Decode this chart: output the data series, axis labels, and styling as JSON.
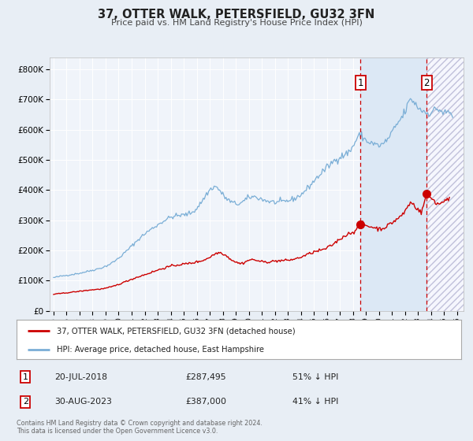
{
  "title": "37, OTTER WALK, PETERSFIELD, GU32 3FN",
  "subtitle": "Price paid vs. HM Land Registry's House Price Index (HPI)",
  "bg_color": "#e8eef5",
  "plot_bg_color": "#f0f4fa",
  "grid_color": "#ffffff",
  "red_line_color": "#cc0000",
  "blue_line_color": "#7aaed6",
  "highlight_color": "#dce8f5",
  "marker1_x": 2018.583,
  "marker1_value": 287495,
  "marker2_x": 2023.667,
  "marker2_value": 387000,
  "marker1_label": "20-JUL-2018",
  "marker1_price": "£287,495",
  "marker1_pct": "51% ↓ HPI",
  "marker2_label": "30-AUG-2023",
  "marker2_price": "£387,000",
  "marker2_pct": "41% ↓ HPI",
  "legend_line1": "37, OTTER WALK, PETERSFIELD, GU32 3FN (detached house)",
  "legend_line2": "HPI: Average price, detached house, East Hampshire",
  "footer1": "Contains HM Land Registry data © Crown copyright and database right 2024.",
  "footer2": "This data is licensed under the Open Government Licence v3.0.",
  "xlim_start": 1994.7,
  "xlim_end": 2026.5,
  "ylim_min": 0,
  "ylim_max": 840000,
  "yticks": [
    0,
    100000,
    200000,
    300000,
    400000,
    500000,
    600000,
    700000,
    800000
  ],
  "ytick_labels": [
    "£0",
    "£100K",
    "£200K",
    "£300K",
    "£400K",
    "£500K",
    "£600K",
    "£700K",
    "£800K"
  ],
  "hpi_anchors_x": [
    1995.0,
    1996.0,
    1997.0,
    1998.0,
    1999.0,
    2000.0,
    2001.0,
    2002.0,
    2003.0,
    2004.0,
    2005.0,
    2006.0,
    2007.0,
    2007.5,
    2008.0,
    2008.5,
    2009.0,
    2009.5,
    2010.0,
    2011.0,
    2012.0,
    2013.0,
    2014.0,
    2015.0,
    2016.0,
    2017.0,
    2018.0,
    2018.5,
    2019.0,
    2019.5,
    2020.0,
    2020.5,
    2021.0,
    2021.5,
    2022.0,
    2022.5,
    2022.8,
    2023.0,
    2023.3,
    2023.5,
    2023.8,
    2024.0,
    2024.3,
    2024.6,
    2025.0,
    2025.3,
    2025.6
  ],
  "hpi_anchors_y": [
    110000,
    118000,
    125000,
    135000,
    148000,
    175000,
    215000,
    255000,
    285000,
    310000,
    318000,
    340000,
    400000,
    410000,
    385000,
    365000,
    355000,
    360000,
    375000,
    370000,
    360000,
    365000,
    385000,
    430000,
    475000,
    510000,
    545000,
    580000,
    565000,
    555000,
    548000,
    560000,
    590000,
    625000,
    660000,
    700000,
    685000,
    675000,
    665000,
    660000,
    655000,
    660000,
    665000,
    668000,
    655000,
    658000,
    648000
  ],
  "red_anchors_x": [
    1995.0,
    1996.0,
    1997.0,
    1998.0,
    1999.0,
    2000.0,
    2001.0,
    2002.0,
    2003.0,
    2004.0,
    2005.0,
    2006.0,
    2007.0,
    2007.8,
    2008.5,
    2009.0,
    2009.5,
    2010.0,
    2011.0,
    2012.0,
    2013.0,
    2014.0,
    2015.0,
    2016.0,
    2017.0,
    2017.8,
    2018.3,
    2018.583,
    2019.0,
    2019.5,
    2020.0,
    2020.5,
    2021.0,
    2021.5,
    2022.0,
    2022.5,
    2022.8,
    2023.0,
    2023.3,
    2023.667,
    2023.9,
    2024.2,
    2024.5,
    2024.8,
    2025.0,
    2025.4
  ],
  "red_anchors_y": [
    55000,
    60000,
    65000,
    70000,
    75000,
    88000,
    105000,
    120000,
    135000,
    148000,
    155000,
    162000,
    178000,
    193000,
    175000,
    162000,
    158000,
    168000,
    163000,
    165000,
    168000,
    178000,
    195000,
    208000,
    238000,
    258000,
    272000,
    287495,
    283000,
    278000,
    272000,
    278000,
    292000,
    308000,
    330000,
    358000,
    345000,
    338000,
    330000,
    387000,
    378000,
    368000,
    355000,
    358000,
    365000,
    372000
  ]
}
